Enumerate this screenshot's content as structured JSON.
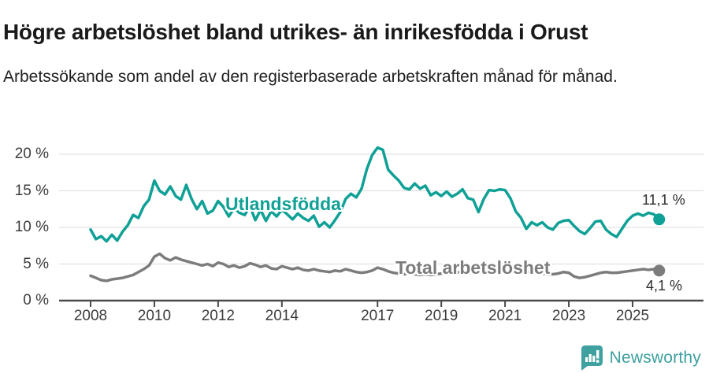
{
  "header": {
    "title": "Högre arbetslöshet bland utrikes- än inrikesfödda i Orust",
    "subtitle": "Arbetssökande som andel av den registerbaserade arbetskraften månad för månad."
  },
  "chart_data": {
    "type": "line",
    "title": "Högre arbetslöshet bland utrikes- än inrikesfödda i Orust",
    "subtitle": "Arbetssökande som andel av den registerbaserade arbetskraften månad för månad.",
    "xlabel": "",
    "ylabel": "",
    "grid": "horizontal",
    "legend_position": "inline-labels-on-lines",
    "xlim": [
      2007.8,
      2026.2
    ],
    "ylim": [
      0,
      21.5
    ],
    "y_tick_values": [
      20,
      15,
      10,
      5,
      0
    ],
    "y_tick_labels": [
      "20 %",
      "15 %",
      "10 %",
      "5 %",
      "0 %"
    ],
    "x_tick_values": [
      2008,
      2010,
      2012,
      2014,
      2017,
      2019,
      2021,
      2023,
      2025
    ],
    "x_tick_labels": [
      "2008",
      "2010",
      "2012",
      "2014",
      "2017",
      "2019",
      "2021",
      "2023",
      "2025"
    ],
    "x_start": 2008.0,
    "x_step": 0.16667,
    "x_unit": "decimal year, sampled every 2 months (values estimated from pixels)",
    "series": [
      {
        "id": "utlandsfodda",
        "name": "Utlandsfödda",
        "color": "#0fa096",
        "end_label": "11,1 %",
        "last_value": 11.1,
        "values": [
          9.7,
          8.4,
          8.8,
          8.1,
          9.0,
          8.2,
          9.4,
          10.3,
          11.7,
          11.3,
          12.9,
          13.8,
          16.4,
          15.0,
          14.5,
          15.6,
          14.3,
          13.8,
          15.8,
          13.9,
          12.5,
          13.6,
          11.9,
          12.3,
          13.6,
          12.8,
          11.5,
          12.6,
          12.0,
          11.7,
          12.9,
          11.0,
          12.4,
          10.9,
          12.2,
          11.5,
          12.4,
          11.8,
          11.1,
          11.9,
          11.3,
          10.9,
          11.6,
          10.1,
          10.7,
          10.0,
          11.0,
          12.1,
          13.9,
          14.6,
          14.1,
          15.3,
          18.0,
          19.9,
          20.9,
          20.6,
          17.9,
          17.1,
          16.4,
          15.4,
          15.2,
          16.0,
          15.3,
          15.7,
          14.4,
          14.8,
          14.3,
          14.9,
          14.2,
          14.6,
          15.2,
          14.0,
          13.8,
          12.1,
          13.9,
          15.1,
          15.0,
          15.2,
          15.1,
          14.0,
          12.2,
          11.3,
          9.8,
          10.7,
          10.3,
          10.7,
          10.0,
          9.7,
          10.6,
          10.9,
          11.0,
          10.2,
          9.5,
          9.1,
          9.9,
          10.8,
          10.9,
          9.7,
          9.1,
          8.7,
          9.8,
          10.9,
          11.6,
          11.9,
          11.6,
          12.0,
          11.8,
          11.1
        ]
      },
      {
        "id": "total",
        "name": "Total arbetslöshet",
        "color": "#7c7c7c",
        "end_label": "4,1 %",
        "last_value": 4.1,
        "values": [
          3.4,
          3.1,
          2.8,
          2.7,
          2.9,
          3.0,
          3.1,
          3.3,
          3.5,
          3.9,
          4.3,
          4.8,
          6.0,
          6.4,
          5.8,
          5.5,
          5.9,
          5.6,
          5.4,
          5.2,
          5.0,
          4.8,
          5.0,
          4.7,
          5.2,
          5.0,
          4.6,
          4.8,
          4.5,
          4.7,
          5.1,
          4.9,
          4.6,
          4.8,
          4.4,
          4.3,
          4.7,
          4.5,
          4.3,
          4.5,
          4.2,
          4.1,
          4.3,
          4.1,
          4.0,
          3.9,
          4.1,
          4.0,
          4.3,
          4.1,
          3.9,
          3.8,
          3.9,
          4.1,
          4.5,
          4.3,
          4.0,
          3.8,
          3.7,
          3.6,
          3.7,
          3.6,
          3.5,
          3.6,
          3.5,
          3.6,
          3.7,
          3.8,
          3.7,
          3.9,
          3.8,
          3.7,
          3.8,
          4.0,
          4.6,
          5.0,
          4.9,
          5.0,
          4.9,
          4.7,
          4.4,
          4.2,
          4.0,
          3.9,
          3.8,
          3.7,
          3.6,
          3.6,
          3.7,
          3.9,
          3.8,
          3.3,
          3.1,
          3.2,
          3.4,
          3.6,
          3.8,
          3.9,
          3.8,
          3.8,
          3.9,
          4.0,
          4.1,
          4.2,
          4.3,
          4.2,
          4.3,
          4.1
        ]
      }
    ]
  },
  "colors": {
    "accent_teal": "#0fa096",
    "logo_teal": "#3fa0a0",
    "line_gray": "#7c7c7c",
    "gridline": "#dbdbdb",
    "axis": "#4a4a4a"
  },
  "footer": {
    "brand": "Newsworthy"
  }
}
